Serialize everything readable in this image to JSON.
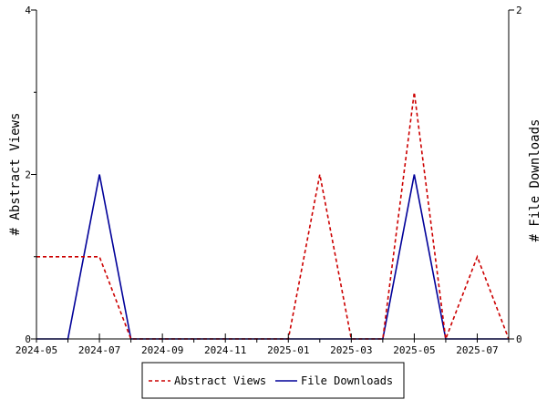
{
  "chart_data": {
    "type": "line",
    "x": [
      "2024-05",
      "2024-06",
      "2024-07",
      "2024-08",
      "2024-09",
      "2024-10",
      "2024-11",
      "2024-12",
      "2025-01",
      "2025-02",
      "2025-03",
      "2025-04",
      "2025-05",
      "2025-06",
      "2025-07",
      "2025-08"
    ],
    "x_tick_labels": [
      "2024-05",
      "2024-07",
      "2024-09",
      "2024-11",
      "2025-01",
      "2025-03",
      "2025-05",
      "2025-07"
    ],
    "ylabel_left": "# Abstract Views",
    "ylabel_right": "# File Downloads",
    "ylim_left": [
      0,
      4
    ],
    "ylim_right": [
      0,
      2
    ],
    "y_ticks_left": [
      "0",
      "2",
      "4"
    ],
    "y_ticks_right": [
      "0",
      "2"
    ],
    "legend_position": "bottom-center",
    "series": [
      {
        "name": "Abstract Views",
        "axis": "left",
        "color": "#cc0000",
        "style": "dashed",
        "values": [
          1,
          1,
          1,
          0,
          0,
          0,
          0,
          0,
          0,
          2,
          0,
          0,
          3,
          0,
          1,
          0
        ]
      },
      {
        "name": "File Downloads",
        "axis": "right",
        "color": "#000099",
        "style": "solid",
        "values": [
          0,
          0,
          1,
          0,
          0,
          0,
          0,
          0,
          0,
          0,
          0,
          0,
          1,
          0,
          0,
          0
        ]
      }
    ]
  }
}
